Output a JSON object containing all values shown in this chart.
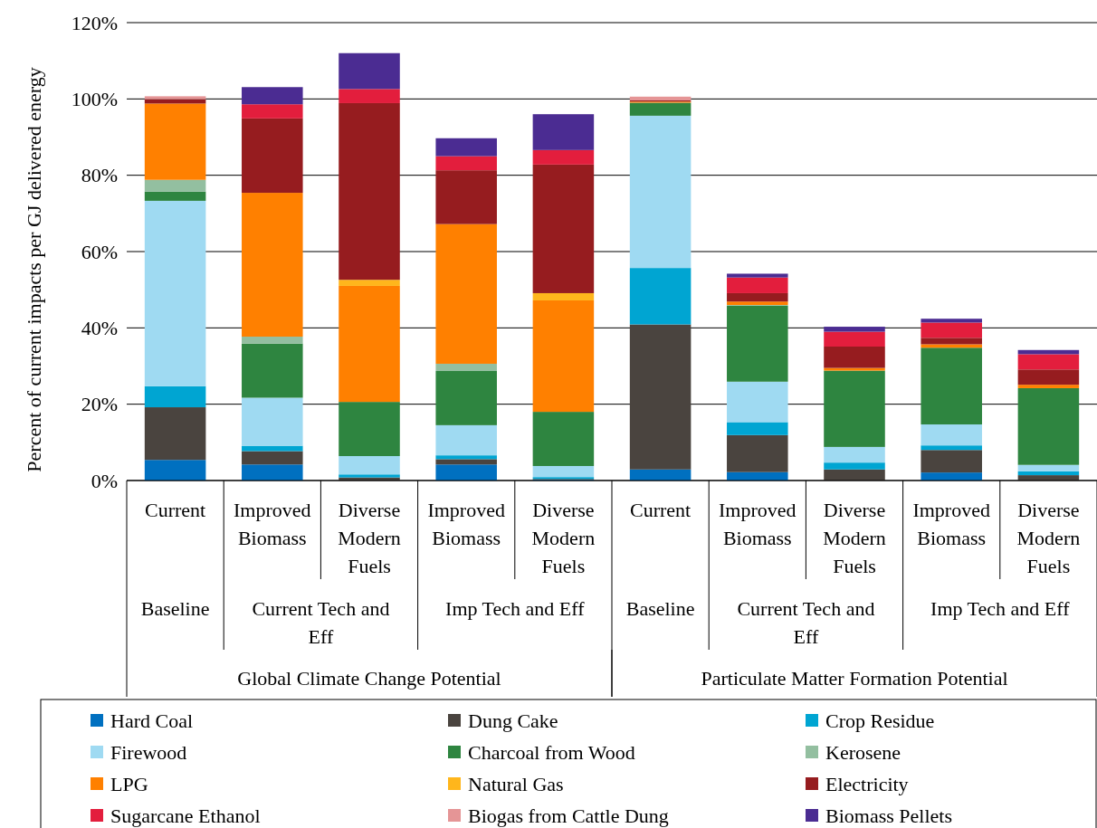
{
  "chart_data": {
    "type": "bar",
    "stacked": true,
    "ylabel": "Percent of current impacts per GJ delivered energy",
    "categories": [
      "Current",
      "Improved Biomass",
      "Diverse Modern Fuels",
      "Improved Biomass",
      "Diverse Modern Fuels",
      "Current",
      "Improved Biomass",
      "Diverse Modern Fuels",
      "Improved Biomass",
      "Diverse Modern Fuels"
    ],
    "annotations": [
      "Baseline",
      "Current Tech and Eff",
      "Imp Tech and Eff",
      "Baseline",
      "Current Tech and Eff",
      "Imp Tech and Eff",
      "Global Climate Change Potential",
      "Particulate Matter Formation Potential"
    ],
    "series": [
      {
        "name": "Hard Coal",
        "color": "#0070c0",
        "values": [
          5.4,
          4.2,
          null,
          4.2,
          0.2,
          2.9,
          2.2,
          null,
          2.1,
          null
        ]
      },
      {
        "name": "Dung Cake",
        "color": "#4a443f",
        "values": [
          13.8,
          3.5,
          0.8,
          1.4,
          0.2,
          38.0,
          9.7,
          2.9,
          5.9,
          1.4
        ]
      },
      {
        "name": "Crop Residue",
        "color": "#00a5d2",
        "values": [
          5.5,
          1.4,
          0.8,
          1.0,
          0.5,
          14.8,
          3.4,
          1.8,
          1.2,
          1.0
        ]
      },
      {
        "name": "Firewood",
        "color": "#9fdaf2",
        "values": [
          48.6,
          12.6,
          4.8,
          7.9,
          2.9,
          39.9,
          10.6,
          4.1,
          5.5,
          1.7
        ]
      },
      {
        "name": "Charcoal from Wood",
        "color": "#2e8540",
        "values": [
          2.4,
          14.2,
          14.2,
          14.2,
          14.2,
          3.4,
          19.9,
          20.0,
          20.1,
          20.1
        ]
      },
      {
        "name": "Kerosene",
        "color": "#93bfa0",
        "values": [
          3.1,
          1.8,
          0,
          1.9,
          0,
          0,
          0.2,
          0,
          0,
          0
        ]
      },
      {
        "name": "LPG",
        "color": "#ff8000",
        "values": [
          20.0,
          37.7,
          30.4,
          36.6,
          29.2,
          0.3,
          0.9,
          0.7,
          0.9,
          0.9
        ]
      },
      {
        "name": "Natural Gas",
        "color": "#ffb61c",
        "values": [
          0,
          0,
          1.6,
          0,
          1.9,
          0,
          0,
          0,
          0,
          0
        ]
      },
      {
        "name": "Electricity",
        "color": "#961c1f",
        "values": [
          1.1,
          19.5,
          46.3,
          14.1,
          33.7,
          0.3,
          2.2,
          5.6,
          1.7,
          4.0
        ]
      },
      {
        "name": "Sugarcane Ethanol",
        "color": "#e31e3d",
        "values": [
          0,
          3.7,
          3.7,
          3.7,
          3.8,
          0,
          4.1,
          3.9,
          4.0,
          4.0
        ]
      },
      {
        "name": "Biogas from Cattle Dung",
        "color": "#e59596",
        "values": [
          0.8,
          0,
          0,
          0,
          0,
          1.0,
          0,
          0,
          0,
          0
        ]
      },
      {
        "name": "Biomass Pellets",
        "color": "#4b2c92",
        "values": [
          0,
          4.5,
          9.4,
          4.7,
          9.4,
          0,
          1.0,
          1.3,
          1.0,
          1.1
        ]
      }
    ],
    "ylim": [
      0,
      120
    ],
    "yticks": [
      {
        "value": 0,
        "label": "0%"
      },
      {
        "value": 20,
        "label": "20%"
      },
      {
        "value": 40,
        "label": "40%"
      },
      {
        "value": 60,
        "label": "60%"
      },
      {
        "value": 80,
        "label": "80%"
      },
      {
        "value": 100,
        "label": "100%"
      },
      {
        "value": 120,
        "label": "120%"
      }
    ],
    "grid": "y",
    "legend": "bottom"
  }
}
